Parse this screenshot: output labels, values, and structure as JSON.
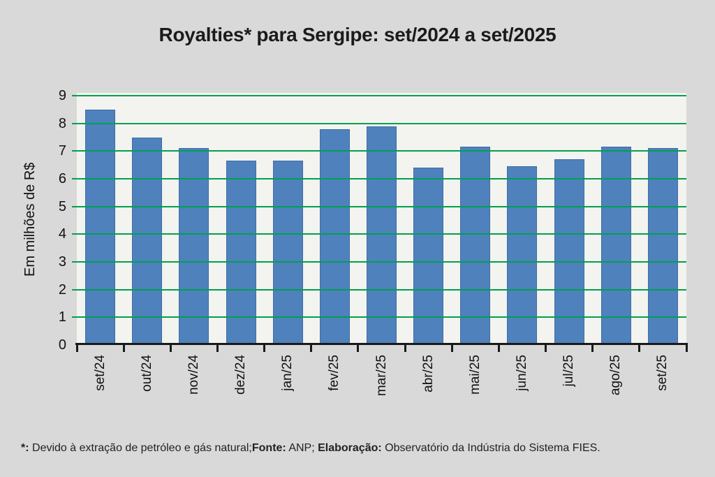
{
  "page": {
    "title": "Royalties* para Sergipe: set/2024 a set/2025",
    "footer": {
      "bold1": "*:",
      "text1": " Devido à extração de petróleo e gás natural;",
      "bold2": "Fonte:",
      "text2": " ANP; ",
      "bold3": "Elaboração:",
      "text3": " Observatório da Indústria do Sistema FIES."
    }
  },
  "chart_data": {
    "type": "bar",
    "title": "Royalties* para Sergipe: set/2024 a set/2025",
    "categories": [
      "set/24",
      "out/24",
      "nov/24",
      "dez/24",
      "jan/25",
      "fev/25",
      "mar/25",
      "abr/25",
      "mai/25",
      "jun/25",
      "jul/25",
      "ago/25",
      "set/25"
    ],
    "values": [
      8.5,
      7.5,
      7.1,
      6.65,
      6.65,
      7.8,
      7.9,
      6.4,
      7.15,
      6.45,
      6.7,
      7.15,
      7.1
    ],
    "xlabel": "",
    "ylabel": "Em milhões de R$",
    "ylim": [
      0,
      9
    ],
    "ytick_step": 1,
    "grid": true,
    "gridlines_over_bars": true,
    "legend": false,
    "colors": {
      "bar": "#4F81BD",
      "bar_edge": "#3E6DA5",
      "gridline": "#00A050",
      "plot_bg": "#F3F3EF",
      "page_bg": "#D9D9D9",
      "axis": "#1A1A1A",
      "text": "#1A1A1A"
    }
  }
}
